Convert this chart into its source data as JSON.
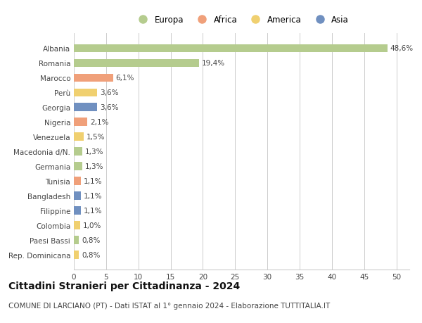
{
  "countries": [
    "Albania",
    "Romania",
    "Marocco",
    "Perù",
    "Georgia",
    "Nigeria",
    "Venezuela",
    "Macedonia d/N.",
    "Germania",
    "Tunisia",
    "Bangladesh",
    "Filippine",
    "Colombia",
    "Paesi Bassi",
    "Rep. Dominicana"
  ],
  "values": [
    48.6,
    19.4,
    6.1,
    3.6,
    3.6,
    2.1,
    1.5,
    1.3,
    1.3,
    1.1,
    1.1,
    1.1,
    1.0,
    0.8,
    0.8
  ],
  "labels": [
    "48,6%",
    "19,4%",
    "6,1%",
    "3,6%",
    "3,6%",
    "2,1%",
    "1,5%",
    "1,3%",
    "1,3%",
    "1,1%",
    "1,1%",
    "1,1%",
    "1,0%",
    "0,8%",
    "0,8%"
  ],
  "continents": [
    "Europa",
    "Europa",
    "Africa",
    "America",
    "Asia",
    "Africa",
    "America",
    "Europa",
    "Europa",
    "Africa",
    "Asia",
    "Asia",
    "America",
    "Europa",
    "America"
  ],
  "colors": {
    "Europa": "#b5cc8e",
    "Africa": "#f0a07a",
    "America": "#f0d070",
    "Asia": "#7090c0"
  },
  "xlim": [
    0,
    52
  ],
  "xticks": [
    0,
    5,
    10,
    15,
    20,
    25,
    30,
    35,
    40,
    45,
    50
  ],
  "title": "Cittadini Stranieri per Cittadinanza - 2024",
  "subtitle": "COMUNE DI LARCIANO (PT) - Dati ISTAT al 1° gennaio 2024 - Elaborazione TUTTITALIA.IT",
  "background_color": "#ffffff",
  "grid_color": "#cccccc",
  "bar_height": 0.55,
  "label_fontsize": 7.5,
  "tick_fontsize": 7.5,
  "title_fontsize": 10,
  "subtitle_fontsize": 7.5
}
